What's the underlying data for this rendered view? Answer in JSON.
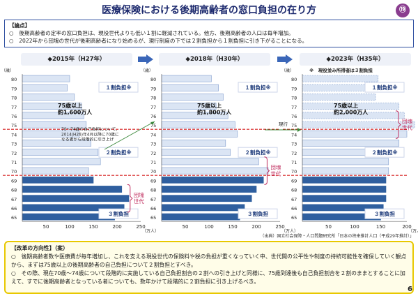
{
  "title": "医療保険における後期高齢者の窓口負担の在り方",
  "page_badge": "⑲",
  "page_number": "6",
  "points": {
    "head": "【論点】",
    "items": [
      "○　後期高齢者の定率の窓口負担は、現役世代よりも低い１割に軽減されている。他方、後期高齢者の人口は毎年増加。",
      "○　2022年から団塊の世代が後期高齢者になり始めるが、現行制度の下では２割負担から１割負担に引き下がることになる。"
    ]
  },
  "panels": [
    {
      "year": "◆2015年（H27年）",
      "over75": "75歳以上\n約1,600万人",
      "upper_label": "１割負担※",
      "mid_label": "２割負担※",
      "lower_label": "３割負担",
      "dankai": "団塊\n世代"
    },
    {
      "year": "◆2018年（H30年）",
      "over75": "75歳以上\n約1,800万人",
      "upper_label": "１割負担※",
      "mid_label": "２割負担※",
      "lower_label": "３割負担",
      "dankai": "団塊\n世代"
    },
    {
      "year": "◆2023年（H35年）",
      "over75": "75歳以上\n約2,000万人",
      "upper_label": "１割負担※",
      "mid_label": "２割負担※",
      "lower_label": "３割負担",
      "dankai": "団塊\n世代",
      "note": "※　現役並み所得者は３割負担"
    }
  ],
  "annotations": {
    "transition": "70～74歳の自己負担について、\n2014(H26)年4月以降に70歳に\nなる者から段階的に引き上げ",
    "current": "現行",
    "source": "（出典）国立社会保障・人口問題研究所「日本の将来推計人口（平成29年推計）」",
    "age_unit": "（歳）",
    "pop_unit": "（万人）"
  },
  "chart_data": [
    {
      "type": "bar",
      "title": "2015年（H27年）",
      "categories": [
        65,
        66,
        67,
        68,
        69,
        70,
        71,
        72,
        73,
        74,
        75,
        76,
        77,
        78,
        79,
        80
      ],
      "series": [
        {
          "values": [
            195,
            215,
            225,
            210,
            150,
            140,
            165,
            160,
            145,
            120,
            135,
            130,
            125,
            110,
            95,
            100
          ]
        }
      ],
      "xlim": [
        0,
        250
      ],
      "xticks": [
        50,
        100,
        150,
        200,
        250
      ],
      "ylabel": "（歳）",
      "xlabel": "（万人）"
    },
    {
      "type": "bar",
      "title": "2018年（H30年）",
      "categories": [
        65,
        66,
        67,
        68,
        69,
        70,
        71,
        72,
        73,
        74,
        75,
        76,
        77,
        78,
        79,
        80
      ],
      "series": [
        {
          "values": [
            165,
            175,
            190,
            200,
            215,
            225,
            205,
            145,
            135,
            160,
            155,
            140,
            115,
            130,
            120,
            105
          ]
        }
      ],
      "xlim": [
        0,
        250
      ],
      "xticks": [
        50,
        100,
        150,
        200,
        250
      ],
      "ylabel": "（歳）",
      "xlabel": "（万人）"
    },
    {
      "type": "bar",
      "title": "2023年（H35年）",
      "categories": [
        65,
        66,
        67,
        68,
        69,
        70,
        71,
        72,
        73,
        74,
        75,
        76,
        77,
        78,
        79,
        80
      ],
      "series": [
        {
          "values": [
            150,
            155,
            160,
            160,
            160,
            165,
            165,
            175,
            185,
            200,
            215,
            195,
            185,
            140,
            130,
            145
          ]
        }
      ],
      "xlim": [
        0,
        200
      ],
      "xticks": [
        50,
        100,
        150,
        200
      ],
      "ylabel": "（歳）",
      "xlabel": "（万人）"
    }
  ],
  "reform": {
    "head": "【改革の方向性】（案）",
    "items": [
      "○　後期高齢者数や医療費が毎年増加し、これを支える現役世代の保険料や税の負担が重くなっていく中、世代間の公平性や制度の持続可能性を確保していく観点から、まずは75歳以上の後期高齢者の自己負担について２割負担とすべき。",
      "○　その際、現在70歳～74歳について段階的に実施している自己負担割合の２割への引き上げと同様に、75歳到達後も自己負担割合を２割のままとすることに加えて、すでに後期高齢者となっている者についても、数年かけて段階的に２割負担に引き上げるべき。"
    ]
  },
  "colors": {
    "bar_dark": "#2f5f9f",
    "bar_light": "#dbe5f4",
    "bar_edge": "#7f9ccc",
    "red_line": "#d62020",
    "dankai": "#c03060"
  }
}
